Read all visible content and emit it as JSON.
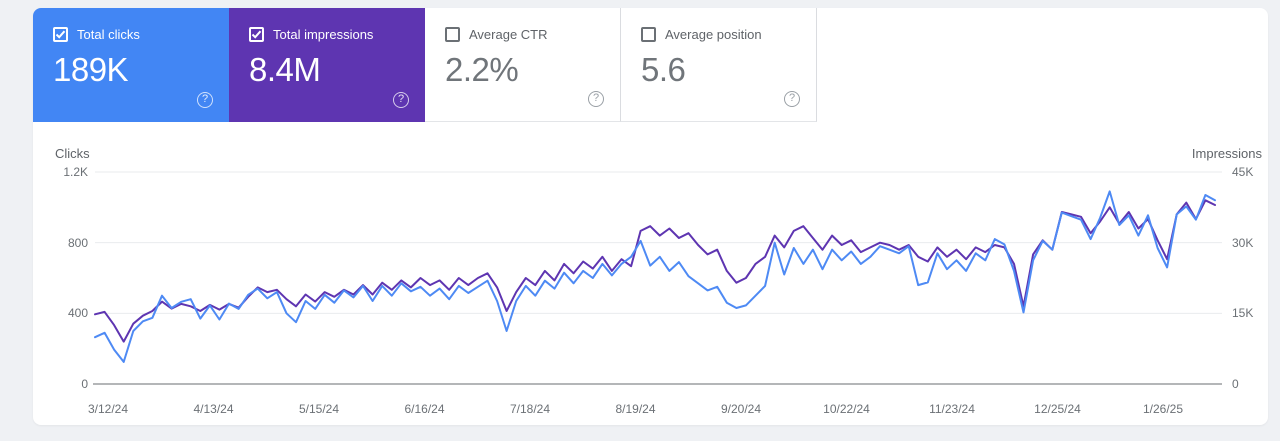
{
  "metrics": {
    "cards": [
      {
        "label": "Total clicks",
        "value": "189K",
        "checked": true,
        "bg": "#4286f4",
        "help_icon": "?"
      },
      {
        "label": "Total impressions",
        "value": "8.4M",
        "checked": true,
        "bg": "#5e35b1",
        "help_icon": "?"
      },
      {
        "label": "Average CTR",
        "value": "2.2%",
        "checked": false,
        "bg": "#ffffff",
        "help_icon": "?"
      },
      {
        "label": "Average position",
        "value": "5.6",
        "checked": false,
        "bg": "#ffffff",
        "help_icon": "?"
      }
    ]
  },
  "chart_data": {
    "type": "line",
    "grid": true,
    "legend_position": "none",
    "left_axis": {
      "title": "Clicks",
      "ticks": [
        "1.2K",
        "800",
        "400",
        "0"
      ],
      "max": 1200,
      "min": 0
    },
    "right_axis": {
      "title": "Impressions",
      "ticks": [
        "45K",
        "30K",
        "15K",
        "0"
      ],
      "max": 45000,
      "min": 0
    },
    "categories": [
      "3/12/24",
      "4/13/24",
      "5/15/24",
      "6/16/24",
      "7/18/24",
      "8/19/24",
      "9/20/24",
      "10/22/24",
      "11/23/24",
      "12/25/24",
      "1/26/25"
    ],
    "series": [
      {
        "name": "Total impressions",
        "axis": "right",
        "color": "#5e35b1",
        "values": [
          14800,
          15300,
          12500,
          9000,
          12800,
          14500,
          15500,
          17500,
          16000,
          17000,
          16500,
          15500,
          16800,
          15800,
          17000,
          16200,
          18500,
          20500,
          19500,
          20000,
          18000,
          16500,
          19000,
          17500,
          19500,
          18500,
          20000,
          19000,
          21000,
          19000,
          21500,
          20000,
          22000,
          20500,
          22500,
          21000,
          22000,
          20000,
          22500,
          21000,
          22500,
          23500,
          20500,
          15500,
          19500,
          22500,
          21000,
          24000,
          22000,
          25500,
          23500,
          26000,
          24500,
          27000,
          24000,
          26500,
          25000,
          32500,
          33500,
          31500,
          33000,
          31000,
          32000,
          29500,
          27500,
          28500,
          24000,
          21500,
          22500,
          25500,
          27000,
          31500,
          29000,
          32500,
          33500,
          31000,
          28500,
          31500,
          29500,
          30500,
          28000,
          29000,
          30000,
          29500,
          28500,
          29500,
          27000,
          26000,
          29000,
          27000,
          28500,
          26500,
          29000,
          28000,
          29500,
          29000,
          25500,
          16500,
          27500,
          30500,
          28500,
          36500,
          36000,
          35500,
          32000,
          34500,
          37500,
          34000,
          36500,
          33000,
          35000,
          30500,
          26500,
          36000,
          38500,
          35000,
          39000,
          38000
        ]
      },
      {
        "name": "Total clicks",
        "axis": "left",
        "color": "#4e8af4",
        "values": [
          265,
          290,
          195,
          125,
          300,
          355,
          375,
          500,
          430,
          465,
          480,
          370,
          445,
          365,
          455,
          425,
          505,
          540,
          485,
          520,
          400,
          350,
          470,
          425,
          505,
          460,
          530,
          490,
          555,
          470,
          555,
          500,
          570,
          525,
          550,
          500,
          540,
          480,
          555,
          515,
          550,
          585,
          470,
          300,
          470,
          555,
          500,
          585,
          540,
          630,
          570,
          640,
          600,
          680,
          615,
          680,
          720,
          810,
          670,
          720,
          640,
          690,
          610,
          570,
          530,
          550,
          460,
          430,
          445,
          500,
          555,
          800,
          620,
          770,
          680,
          760,
          650,
          760,
          700,
          750,
          680,
          720,
          780,
          760,
          740,
          780,
          560,
          575,
          740,
          650,
          700,
          640,
          740,
          700,
          820,
          790,
          640,
          405,
          700,
          810,
          760,
          970,
          950,
          930,
          820,
          940,
          1090,
          900,
          955,
          840,
          955,
          770,
          660,
          960,
          1005,
          930,
          1070,
          1040
        ]
      }
    ],
    "grid_color": "#e9ebee",
    "baseline_color": "#888b8e"
  }
}
